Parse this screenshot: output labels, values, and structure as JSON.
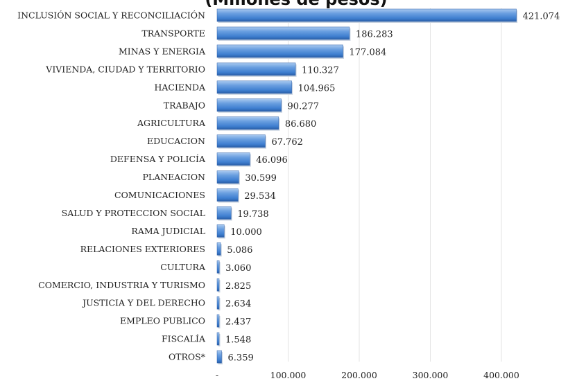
{
  "chart_data": {
    "type": "bar",
    "orientation": "horizontal",
    "title": "(Millones de pesos)",
    "categories": [
      "INCLUSIÓN SOCIAL Y RECONCILIACIÓN",
      "TRANSPORTE",
      "MINAS Y ENERGIA",
      "VIVIENDA, CIUDAD Y TERRITORIO",
      "HACIENDA",
      "TRABAJO",
      "AGRICULTURA",
      "EDUCACION",
      "DEFENSA Y POLICÍA",
      "PLANEACION",
      "COMUNICACIONES",
      "SALUD Y PROTECCION SOCIAL",
      "RAMA JUDICIAL",
      "RELACIONES EXTERIORES",
      "CULTURA",
      "COMERCIO, INDUSTRIA Y TURISMO",
      "JUSTICIA Y DEL DERECHO",
      "EMPLEO PUBLICO",
      "FISCALÍA",
      "OTROS*"
    ],
    "values": [
      421074,
      186283,
      177084,
      110327,
      104965,
      90277,
      86680,
      67762,
      46096,
      30599,
      29534,
      19738,
      10000,
      5086,
      3060,
      2825,
      2634,
      2437,
      1548,
      6359
    ],
    "value_labels": [
      "421.074",
      "186.283",
      "177.084",
      "110.327",
      "104.965",
      "90.277",
      "86.680",
      "67.762",
      "46.096",
      "30.599",
      "29.534",
      "19.738",
      "10.000",
      "5.086",
      "3.060",
      "2.825",
      "2.634",
      "2.437",
      "1.548",
      "6.359"
    ],
    "x_ticks": [
      0,
      100000,
      200000,
      300000,
      400000
    ],
    "x_tick_labels": [
      "-",
      "100.000",
      "200.000",
      "300.000",
      "400.000"
    ],
    "xlim": [
      0,
      450000
    ],
    "grid": true,
    "bar_color": "#3f7fd0",
    "bar_highlight": "#a9c9ef",
    "bar_shadow": "#2a5ea8"
  }
}
